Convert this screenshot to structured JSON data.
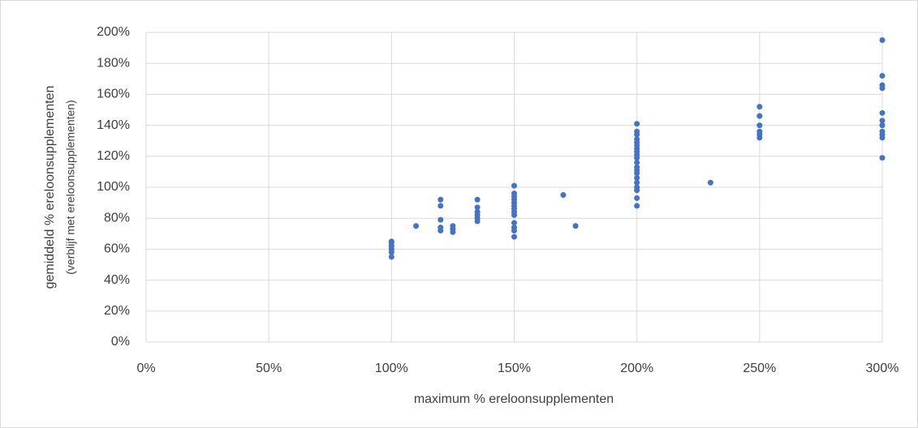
{
  "chart_data": {
    "type": "scatter",
    "xlabel": "maximum % ereloonsupplementen",
    "ylabel": [
      "gemiddeld % ereloonsupplementen",
      "(verblijf met ereloonsupplementen)"
    ],
    "color": "#4472c4",
    "grid": true,
    "xlim": [
      0,
      300
    ],
    "xticks": [
      {
        "value": 0,
        "label": "0%"
      },
      {
        "value": 50,
        "label": "50%"
      },
      {
        "value": 100,
        "label": "100%"
      },
      {
        "value": 150,
        "label": "150%"
      },
      {
        "value": 200,
        "label": "200%"
      },
      {
        "value": 250,
        "label": "250%"
      },
      {
        "value": 300,
        "label": "300%"
      }
    ],
    "ylim": [
      0,
      200
    ],
    "yticks": [
      {
        "value": 0,
        "label": "0%"
      },
      {
        "value": 20,
        "label": "20%"
      },
      {
        "value": 40,
        "label": "40%"
      },
      {
        "value": 60,
        "label": "60%"
      },
      {
        "value": 80,
        "label": "80%"
      },
      {
        "value": 100,
        "label": "100%"
      },
      {
        "value": 120,
        "label": "120%"
      },
      {
        "value": 140,
        "label": "140%"
      },
      {
        "value": 160,
        "label": "160%"
      },
      {
        "value": 180,
        "label": "180%"
      },
      {
        "value": 200,
        "label": "200%"
      }
    ],
    "x": [
      100,
      100,
      100,
      100,
      100,
      100,
      110,
      120,
      120,
      120,
      120,
      120,
      125,
      125,
      125,
      135,
      135,
      135,
      135,
      135,
      135,
      150,
      150,
      150,
      150,
      150,
      150,
      150,
      150,
      150,
      150,
      150,
      150,
      150,
      170,
      175,
      200,
      200,
      200,
      200,
      200,
      200,
      200,
      200,
      200,
      200,
      200,
      200,
      200,
      200,
      200,
      200,
      200,
      200,
      200,
      200,
      230,
      250,
      250,
      250,
      250,
      250,
      250,
      300,
      300,
      300,
      300,
      300,
      300,
      300,
      300,
      300,
      300,
      300
    ],
    "values": [
      65,
      64,
      62,
      60,
      58,
      55,
      75,
      92,
      88,
      79,
      74,
      72,
      75,
      73,
      71,
      92,
      87,
      84,
      82,
      80,
      78,
      101,
      96,
      94,
      92,
      90,
      88,
      86,
      84,
      82,
      77,
      74,
      72,
      68,
      95,
      75,
      141,
      136,
      134,
      131,
      129,
      127,
      125,
      123,
      121,
      119,
      116,
      113,
      111,
      109,
      106,
      103,
      100,
      98,
      93,
      88,
      103,
      152,
      146,
      140,
      136,
      134,
      132,
      195,
      172,
      166,
      164,
      148,
      143,
      140,
      136,
      134,
      132,
      119
    ]
  }
}
